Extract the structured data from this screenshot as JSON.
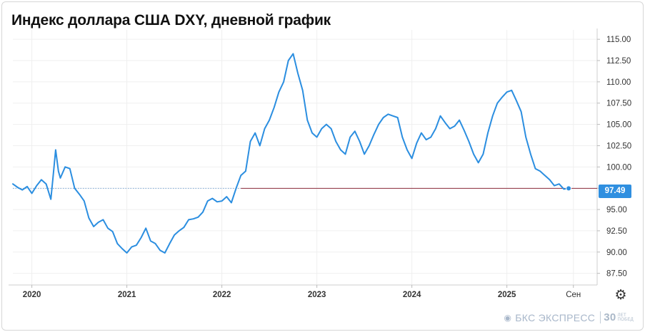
{
  "header": {
    "title": "Индекс доллара США DXY, дневной график"
  },
  "colors": {
    "line": "#2b8ee0",
    "grid": "#efefef",
    "axis_text": "#333333",
    "last_line": "#8b2b3a",
    "tag_bg": "#2f8fe0"
  },
  "chart_data": {
    "type": "line",
    "title": "Индекс доллара США DXY, дневной график",
    "x_ticks": [
      "2020",
      "2021",
      "2022",
      "2023",
      "2024",
      "2025",
      "Сен"
    ],
    "y_ticks": [
      "115.00",
      "112.50",
      "110.00",
      "107.50",
      "105.00",
      "102.50",
      "100.00",
      "97.50",
      "95.00",
      "92.50",
      "90.00",
      "87.50"
    ],
    "ylim": [
      86.3,
      116.1
    ],
    "last_value": 97.49,
    "last_value_label": "97.49",
    "grid": true,
    "series": [
      {
        "x": [
          2019.8,
          2019.85,
          2019.9,
          2019.95,
          2020.0,
          2020.05,
          2020.1,
          2020.15,
          2020.2,
          2020.22,
          2020.25,
          2020.28,
          2020.3,
          2020.35,
          2020.4,
          2020.45,
          2020.5,
          2020.55,
          2020.6,
          2020.65,
          2020.7,
          2020.75,
          2020.8,
          2020.85,
          2020.9,
          2020.95,
          2021.0,
          2021.05,
          2021.1,
          2021.15,
          2021.2,
          2021.25,
          2021.3,
          2021.35,
          2021.4,
          2021.45,
          2021.5,
          2021.55,
          2021.6,
          2021.65,
          2021.7,
          2021.75,
          2021.8,
          2021.85,
          2021.9,
          2021.95,
          2022.0,
          2022.05,
          2022.1,
          2022.15,
          2022.2,
          2022.25,
          2022.3,
          2022.35,
          2022.4,
          2022.45,
          2022.5,
          2022.55,
          2022.6,
          2022.65,
          2022.7,
          2022.75,
          2022.8,
          2022.85,
          2022.9,
          2022.95,
          2023.0,
          2023.05,
          2023.1,
          2023.15,
          2023.2,
          2023.25,
          2023.3,
          2023.35,
          2023.4,
          2023.45,
          2023.5,
          2023.55,
          2023.6,
          2023.65,
          2023.7,
          2023.75,
          2023.8,
          2023.85,
          2023.9,
          2023.95,
          2024.0,
          2024.05,
          2024.1,
          2024.15,
          2024.2,
          2024.25,
          2024.3,
          2024.35,
          2024.4,
          2024.45,
          2024.5,
          2024.55,
          2024.6,
          2024.65,
          2024.7,
          2024.75,
          2024.8,
          2024.85,
          2024.9,
          2024.95,
          2025.0,
          2025.05,
          2025.1,
          2025.15,
          2025.2,
          2025.25,
          2025.3,
          2025.35,
          2025.4,
          2025.45,
          2025.5,
          2025.55,
          2025.6,
          2025.65
        ],
        "values": [
          98.0,
          97.6,
          97.3,
          97.7,
          96.9,
          97.8,
          98.5,
          98.0,
          96.2,
          98.5,
          102.0,
          99.5,
          98.7,
          100.0,
          99.8,
          97.5,
          96.8,
          96.0,
          94.0,
          93.0,
          93.5,
          93.8,
          92.8,
          92.4,
          91.0,
          90.4,
          89.9,
          90.6,
          90.8,
          91.7,
          92.8,
          91.3,
          91.0,
          90.2,
          89.9,
          91.0,
          92.0,
          92.5,
          92.9,
          93.8,
          93.9,
          94.1,
          94.7,
          96.0,
          96.3,
          95.9,
          96.0,
          96.5,
          95.8,
          97.5,
          99.0,
          99.5,
          103.0,
          104.0,
          102.5,
          104.5,
          105.5,
          107.0,
          108.8,
          110.0,
          112.5,
          113.3,
          111.0,
          109.0,
          105.5,
          104.0,
          103.5,
          104.5,
          105.0,
          104.5,
          103.0,
          102.0,
          101.5,
          103.5,
          104.2,
          103.0,
          101.5,
          102.5,
          103.8,
          105.0,
          105.8,
          106.2,
          106.0,
          105.8,
          103.5,
          102.0,
          101.0,
          102.8,
          104.0,
          103.2,
          103.5,
          104.5,
          106.0,
          105.2,
          104.5,
          104.8,
          105.5,
          104.3,
          103.0,
          101.5,
          100.5,
          101.5,
          104.0,
          106.0,
          107.5,
          108.2,
          108.8,
          109.0,
          107.8,
          106.5,
          103.5,
          101.5,
          99.8,
          99.5,
          99.0,
          98.5,
          97.8,
          98.0,
          97.4,
          97.49
        ]
      }
    ]
  },
  "watermark": {
    "brand": "БКС ЭКСПРЕСС",
    "badge_num": "30",
    "badge_line1": "ЛЕТ",
    "badge_line2": "ПОБЕД"
  }
}
